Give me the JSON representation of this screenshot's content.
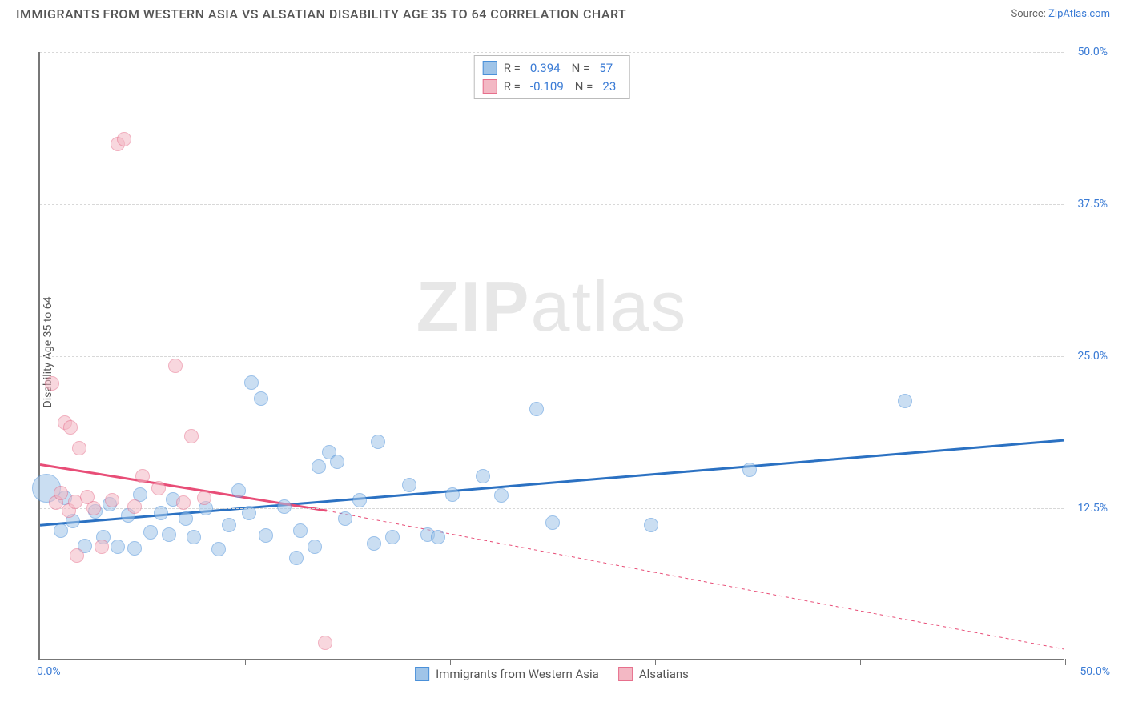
{
  "title": "IMMIGRANTS FROM WESTERN ASIA VS ALSATIAN DISABILITY AGE 35 TO 64 CORRELATION CHART",
  "source_prefix": "Source: ",
  "source_name": "ZipAtlas.com",
  "watermark_bold": "ZIP",
  "watermark_rest": "atlas",
  "chart": {
    "type": "scatter",
    "xlim": [
      0,
      50
    ],
    "ylim": [
      0,
      50
    ],
    "x_ticks_pct": [
      10,
      20,
      30,
      40,
      50
    ],
    "y_ticks": [
      {
        "value": 12.5,
        "label": "12.5%"
      },
      {
        "value": 25.0,
        "label": "25.0%"
      },
      {
        "value": 37.5,
        "label": "37.5%"
      },
      {
        "value": 50.0,
        "label": "50.0%"
      }
    ],
    "x_origin_label": "0.0%",
    "x_max_label": "50.0%",
    "y_axis_label": "Disability Age 35 to 64",
    "background": "#ffffff",
    "grid_color": "#d8d8d8",
    "axis_color": "#777777",
    "point_radius": 9,
    "point_opacity": 0.55,
    "series": [
      {
        "key": "blue",
        "label": "Immigrants from Western Asia",
        "fill": "#9fc4e8",
        "stroke": "#4a90d9",
        "R": "0.394",
        "N": "57",
        "trend": {
          "x1": 0,
          "y1": 11.0,
          "x2": 50,
          "y2": 18.0,
          "color": "#2b71c2",
          "dash_after_x": 50
        },
        "points": [
          {
            "x": 0.3,
            "y": 14.0,
            "r": 18
          },
          {
            "x": 1.2,
            "y": 13.2
          },
          {
            "x": 1.0,
            "y": 10.5
          },
          {
            "x": 1.6,
            "y": 11.3
          },
          {
            "x": 2.2,
            "y": 9.3
          },
          {
            "x": 2.7,
            "y": 12.1
          },
          {
            "x": 3.1,
            "y": 10.0
          },
          {
            "x": 3.4,
            "y": 12.7
          },
          {
            "x": 3.8,
            "y": 9.2
          },
          {
            "x": 4.3,
            "y": 11.8
          },
          {
            "x": 4.9,
            "y": 13.5
          },
          {
            "x": 4.6,
            "y": 9.1
          },
          {
            "x": 5.4,
            "y": 10.4
          },
          {
            "x": 5.9,
            "y": 12.0
          },
          {
            "x": 6.3,
            "y": 10.2
          },
          {
            "x": 6.5,
            "y": 13.1
          },
          {
            "x": 7.1,
            "y": 11.5
          },
          {
            "x": 7.5,
            "y": 10.0
          },
          {
            "x": 8.1,
            "y": 12.4
          },
          {
            "x": 8.7,
            "y": 9.0
          },
          {
            "x": 9.2,
            "y": 11.0
          },
          {
            "x": 9.7,
            "y": 13.8
          },
          {
            "x": 10.3,
            "y": 22.7
          },
          {
            "x": 10.2,
            "y": 12.0
          },
          {
            "x": 11.0,
            "y": 10.1
          },
          {
            "x": 10.8,
            "y": 21.4
          },
          {
            "x": 11.9,
            "y": 12.5
          },
          {
            "x": 12.5,
            "y": 8.3
          },
          {
            "x": 12.7,
            "y": 10.5
          },
          {
            "x": 13.4,
            "y": 9.2
          },
          {
            "x": 13.6,
            "y": 15.8
          },
          {
            "x": 14.1,
            "y": 17.0
          },
          {
            "x": 14.5,
            "y": 16.2
          },
          {
            "x": 14.9,
            "y": 11.5
          },
          {
            "x": 15.6,
            "y": 13.0
          },
          {
            "x": 16.5,
            "y": 17.8
          },
          {
            "x": 16.3,
            "y": 9.5
          },
          {
            "x": 17.2,
            "y": 10.0
          },
          {
            "x": 18.0,
            "y": 14.3
          },
          {
            "x": 18.9,
            "y": 10.2
          },
          {
            "x": 19.4,
            "y": 10.0
          },
          {
            "x": 20.1,
            "y": 13.5
          },
          {
            "x": 21.6,
            "y": 15.0
          },
          {
            "x": 22.5,
            "y": 13.4
          },
          {
            "x": 24.2,
            "y": 20.5
          },
          {
            "x": 25.0,
            "y": 11.2
          },
          {
            "x": 29.8,
            "y": 11.0
          },
          {
            "x": 34.6,
            "y": 15.5
          },
          {
            "x": 42.2,
            "y": 21.2
          }
        ]
      },
      {
        "key": "pink",
        "label": "Alsatians",
        "fill": "#f3b8c4",
        "stroke": "#e76f8c",
        "R": "-0.109",
        "N": "23",
        "trend": {
          "x1": 0,
          "y1": 16.0,
          "x2": 14,
          "y2": 12.2,
          "color": "#e84d77",
          "dash_after_x": 14,
          "dash_y_end": 0.8,
          "dash_x_end": 50
        },
        "points": [
          {
            "x": 0.6,
            "y": 22.6
          },
          {
            "x": 0.8,
            "y": 12.8
          },
          {
            "x": 1.0,
            "y": 13.6
          },
          {
            "x": 1.2,
            "y": 19.4
          },
          {
            "x": 1.4,
            "y": 12.2
          },
          {
            "x": 1.5,
            "y": 19.0
          },
          {
            "x": 1.9,
            "y": 17.3
          },
          {
            "x": 1.7,
            "y": 12.9
          },
          {
            "x": 1.8,
            "y": 8.5
          },
          {
            "x": 2.3,
            "y": 13.3
          },
          {
            "x": 2.6,
            "y": 12.4
          },
          {
            "x": 3.0,
            "y": 9.2
          },
          {
            "x": 3.5,
            "y": 13.0
          },
          {
            "x": 3.8,
            "y": 42.3
          },
          {
            "x": 4.1,
            "y": 42.7
          },
          {
            "x": 4.6,
            "y": 12.5
          },
          {
            "x": 5.0,
            "y": 15.0
          },
          {
            "x": 5.8,
            "y": 14.0
          },
          {
            "x": 6.6,
            "y": 24.1
          },
          {
            "x": 7.0,
            "y": 12.8
          },
          {
            "x": 7.4,
            "y": 18.3
          },
          {
            "x": 8.0,
            "y": 13.2
          },
          {
            "x": 13.9,
            "y": 1.3
          }
        ]
      }
    ],
    "legend_top": {
      "r_label": "R =",
      "n_label": "N ="
    }
  }
}
